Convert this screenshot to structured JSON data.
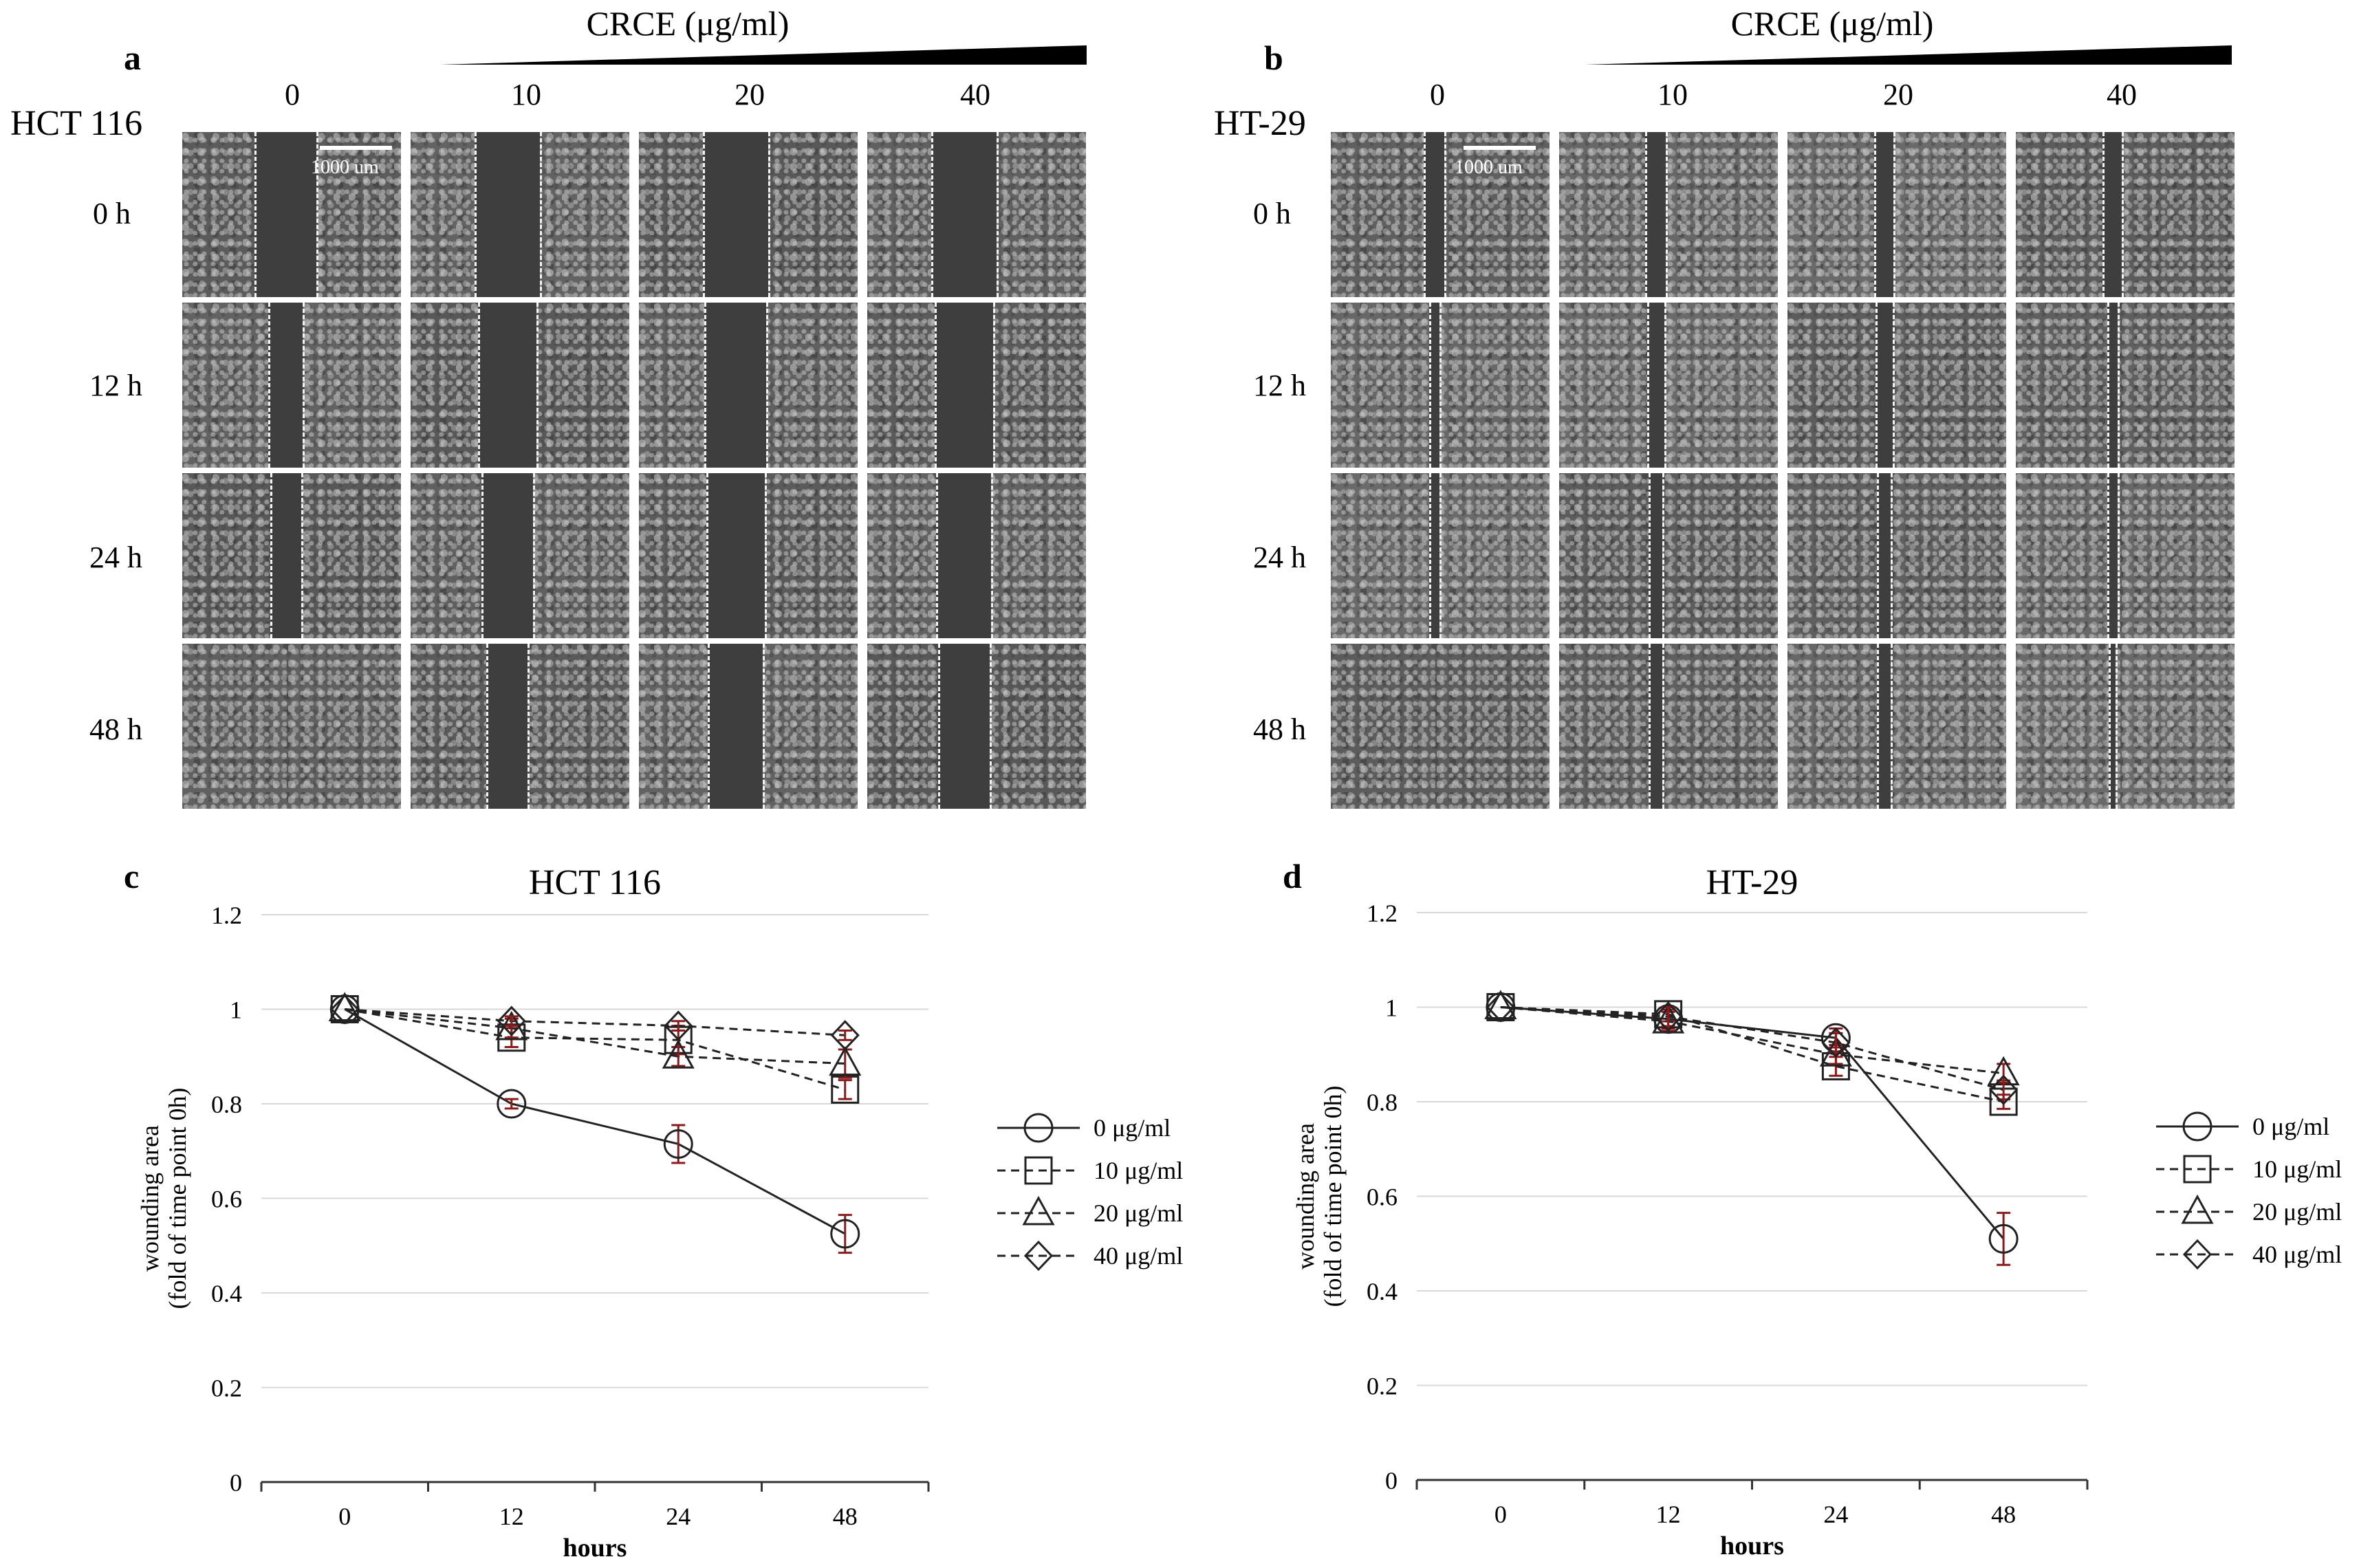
{
  "panels": {
    "a": {
      "letter": "a",
      "cell_line": "HCT 116",
      "treatment": "CRCE (μg/ml)",
      "concentrations": [
        "0",
        "10",
        "20",
        "40"
      ],
      "timepoints": [
        "0 h",
        "12 h",
        "24 h",
        "48 h"
      ],
      "scale_bar": "1000 um"
    },
    "b": {
      "letter": "b",
      "cell_line": "HT-29",
      "treatment": "CRCE (μg/ml)",
      "concentrations": [
        "0",
        "10",
        "20",
        "40"
      ],
      "timepoints": [
        "0 h",
        "12 h",
        "24 h",
        "48 h"
      ],
      "scale_bar": "1000 um"
    },
    "c": {
      "letter": "c"
    },
    "d": {
      "letter": "d"
    }
  },
  "chart_data": [
    {
      "type": "line",
      "panel": "c",
      "title": "HCT 116",
      "xlabel": "hours",
      "ylabel_line1": "wounding area",
      "ylabel_line2": "(fold of time point 0h)",
      "categories": [
        "0",
        "12",
        "24",
        "48"
      ],
      "ylim": [
        0,
        1.2
      ],
      "yticks": [
        "0",
        "0.2",
        "0.4",
        "0.6",
        "0.8",
        "1",
        "1.2"
      ],
      "grid": true,
      "legend_position": "right",
      "series": [
        {
          "name": "0 μg/ml",
          "marker": "circle",
          "dash": "solid",
          "values": [
            1.0,
            0.8,
            0.715,
            0.525
          ],
          "errors": [
            0.0,
            0.01,
            0.04,
            0.04
          ]
        },
        {
          "name": "10 μg/ml",
          "marker": "square",
          "dash": "dashed",
          "values": [
            1.0,
            0.94,
            0.935,
            0.83
          ],
          "errors": [
            0.0,
            0.02,
            0.03,
            0.02
          ]
        },
        {
          "name": "20 μg/ml",
          "marker": "triangle",
          "dash": "dashed",
          "values": [
            1.0,
            0.96,
            0.9,
            0.885
          ],
          "errors": [
            0.0,
            0.02,
            0.02,
            0.03
          ]
        },
        {
          "name": "40 μg/ml",
          "marker": "diamond",
          "dash": "dashed",
          "values": [
            1.0,
            0.975,
            0.965,
            0.945
          ],
          "errors": [
            0.0,
            0.01,
            0.01,
            0.01
          ]
        }
      ]
    },
    {
      "type": "line",
      "panel": "d",
      "title": "HT-29",
      "xlabel": "hours",
      "ylabel_line1": "wounding area",
      "ylabel_line2": "(fold of time point 0h)",
      "categories": [
        "0",
        "12",
        "24",
        "48"
      ],
      "ylim": [
        0,
        1.2
      ],
      "yticks": [
        "0",
        "0.2",
        "0.4",
        "0.6",
        "0.8",
        "1",
        "1.2"
      ],
      "grid": true,
      "legend_position": "right",
      "series": [
        {
          "name": "0 μg/ml",
          "marker": "circle",
          "dash": "solid",
          "values": [
            1.0,
            0.975,
            0.935,
            0.51
          ],
          "errors": [
            0.0,
            0.02,
            0.02,
            0.055
          ]
        },
        {
          "name": "10 μg/ml",
          "marker": "square",
          "dash": "dashed",
          "values": [
            1.0,
            0.985,
            0.875,
            0.8
          ],
          "errors": [
            0.0,
            0.015,
            0.02,
            0.015
          ]
        },
        {
          "name": "20 μg/ml",
          "marker": "triangle",
          "dash": "dashed",
          "values": [
            1.0,
            0.97,
            0.9,
            0.86
          ],
          "errors": [
            0.0,
            0.02,
            0.02,
            0.02
          ]
        },
        {
          "name": "40 μg/ml",
          "marker": "diamond",
          "dash": "dashed",
          "values": [
            1.0,
            0.98,
            0.925,
            0.825
          ],
          "errors": [
            0.0,
            0.02,
            0.02,
            0.02
          ]
        }
      ]
    }
  ]
}
